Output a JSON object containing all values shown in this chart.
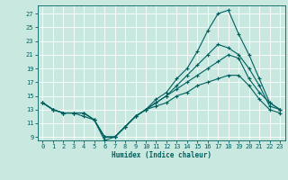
{
  "xlabel": "Humidex (Indice chaleur)",
  "bg_color": "#c8e8e0",
  "line_color": "#006060",
  "grid_color": "#ffffff",
  "xlim": [
    -0.5,
    23.5
  ],
  "ylim": [
    8.5,
    28.2
  ],
  "xticks": [
    0,
    1,
    2,
    3,
    4,
    5,
    6,
    7,
    8,
    9,
    10,
    11,
    12,
    13,
    14,
    15,
    16,
    17,
    18,
    19,
    20,
    21,
    22,
    23
  ],
  "yticks": [
    9,
    11,
    13,
    15,
    17,
    19,
    21,
    23,
    25,
    27
  ],
  "line1_y": [
    14.0,
    13.0,
    12.5,
    12.5,
    12.5,
    11.5,
    8.5,
    9.0,
    10.5,
    12.0,
    13.0,
    14.0,
    15.0,
    16.5,
    18.0,
    19.5,
    21.0,
    22.5,
    22.0,
    21.0,
    19.0,
    16.5,
    13.5,
    13.0
  ],
  "line2_y": [
    14.0,
    13.0,
    12.5,
    12.5,
    12.0,
    11.5,
    9.0,
    9.0,
    10.5,
    12.0,
    13.0,
    14.5,
    15.5,
    17.5,
    19.0,
    21.5,
    24.5,
    27.0,
    27.5,
    24.0,
    21.0,
    17.5,
    14.0,
    13.0
  ],
  "line3_y": [
    14.0,
    13.0,
    12.5,
    12.5,
    12.5,
    11.5,
    9.0,
    9.0,
    10.5,
    12.0,
    13.0,
    14.0,
    15.0,
    16.0,
    17.0,
    18.0,
    19.0,
    20.0,
    21.0,
    20.5,
    17.5,
    15.5,
    14.0,
    13.0
  ],
  "line4_y": [
    14.0,
    13.0,
    12.5,
    12.5,
    12.5,
    11.5,
    9.0,
    9.0,
    10.5,
    12.0,
    13.0,
    13.5,
    14.0,
    15.0,
    15.5,
    16.5,
    17.0,
    17.5,
    18.0,
    18.0,
    16.5,
    14.5,
    13.0,
    12.5
  ]
}
